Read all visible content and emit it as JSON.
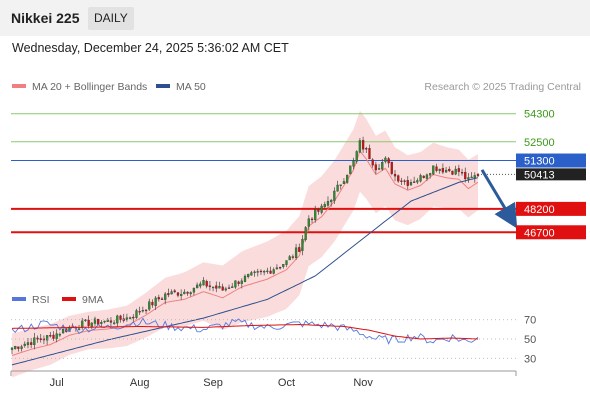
{
  "header": {
    "title": "Nikkei 225",
    "timeframe": "DAILY"
  },
  "date_line": "Wednesday, December 24, 2025 5:36:02 AM CET",
  "colors": {
    "bollinger": "#f08080",
    "ma50": "#2c4f8f",
    "band_fill": "#f9d0d0",
    "bull": "#2e8b2e",
    "bear": "#d01010",
    "resistance": "#8cc870",
    "resistance_text": "#3a9a1a",
    "pivot": "#2b5fc9",
    "support": "#e01010",
    "rsi": "#5577dd",
    "rsi_ma": "#e01010",
    "arrow": "#2c5a9a"
  },
  "chart_data": [
    {
      "type": "candlestick",
      "legend": [
        {
          "label": "MA 20 + Bollinger Bands",
          "color": "#f08080"
        },
        {
          "label": "MA 50",
          "color": "#2c4f8f"
        }
      ],
      "attribution": "Research © 2025 Trading Central",
      "ylim": [
        43000,
        55500
      ],
      "x_ticks": [
        "Jul",
        "Aug",
        "Sep",
        "Oct",
        "Nov"
      ],
      "levels": [
        {
          "value": "54300",
          "kind": "resistance"
        },
        {
          "value": "52500",
          "kind": "resistance"
        },
        {
          "value": "51300",
          "kind": "pivot"
        },
        {
          "value": "48200",
          "kind": "support"
        },
        {
          "value": "46700",
          "kind": "support"
        }
      ],
      "last_price": "50413",
      "ohlc_anchors": [
        {
          "x": 0,
          "y": 39300
        },
        {
          "x": 6,
          "y": 39700
        },
        {
          "x": 12,
          "y": 40000
        },
        {
          "x": 18,
          "y": 40600
        },
        {
          "x": 24,
          "y": 40900
        },
        {
          "x": 30,
          "y": 41000
        },
        {
          "x": 36,
          "y": 41200
        },
        {
          "x": 42,
          "y": 41900
        },
        {
          "x": 48,
          "y": 42700
        },
        {
          "x": 54,
          "y": 42900
        },
        {
          "x": 60,
          "y": 43400
        },
        {
          "x": 66,
          "y": 43000
        },
        {
          "x": 72,
          "y": 43700
        },
        {
          "x": 80,
          "y": 44200
        },
        {
          "x": 86,
          "y": 44800
        },
        {
          "x": 90,
          "y": 45700
        },
        {
          "x": 93,
          "y": 47600
        },
        {
          "x": 97,
          "y": 48200
        },
        {
          "x": 101,
          "y": 49200
        },
        {
          "x": 104,
          "y": 50200
        },
        {
          "x": 107,
          "y": 51200
        },
        {
          "x": 109,
          "y": 52400
        },
        {
          "x": 111,
          "y": 51900
        },
        {
          "x": 114,
          "y": 50900
        },
        {
          "x": 117,
          "y": 51300
        },
        {
          "x": 120,
          "y": 50300
        },
        {
          "x": 124,
          "y": 49900
        },
        {
          "x": 128,
          "y": 50200
        },
        {
          "x": 132,
          "y": 50900
        },
        {
          "x": 136,
          "y": 50700
        },
        {
          "x": 140,
          "y": 50600
        },
        {
          "x": 143,
          "y": 50000
        },
        {
          "x": 146,
          "y": 50413
        }
      ],
      "ma50_anchors": [
        {
          "x": 0,
          "y": 38200
        },
        {
          "x": 30,
          "y": 39800
        },
        {
          "x": 60,
          "y": 41200
        },
        {
          "x": 80,
          "y": 42400
        },
        {
          "x": 95,
          "y": 43900
        },
        {
          "x": 110,
          "y": 46300
        },
        {
          "x": 125,
          "y": 48700
        },
        {
          "x": 140,
          "y": 49900
        },
        {
          "x": 146,
          "y": 50200
        }
      ],
      "ma20_offset": -500,
      "band_half_width": [
        1400,
        1300,
        1200,
        1300,
        1600,
        1900,
        2300,
        2500,
        2600,
        2600,
        2300,
        2000,
        1800
      ],
      "forecast_arrow": {
        "from": 50700,
        "to": 47600
      },
      "n_bars": 147
    },
    {
      "type": "line",
      "legend": [
        {
          "label": "RSI",
          "color": "#5577dd"
        },
        {
          "label": "9MA",
          "color": "#e01010"
        }
      ],
      "ylim": [
        22,
        78
      ],
      "y_ticks": [
        "70",
        "50",
        "30"
      ],
      "rsi_anchors": [
        {
          "x": 0,
          "y": 58
        },
        {
          "x": 10,
          "y": 66
        },
        {
          "x": 20,
          "y": 60
        },
        {
          "x": 30,
          "y": 62
        },
        {
          "x": 40,
          "y": 68
        },
        {
          "x": 50,
          "y": 63
        },
        {
          "x": 60,
          "y": 60
        },
        {
          "x": 70,
          "y": 67
        },
        {
          "x": 80,
          "y": 62
        },
        {
          "x": 90,
          "y": 66
        },
        {
          "x": 100,
          "y": 64
        },
        {
          "x": 108,
          "y": 58
        },
        {
          "x": 114,
          "y": 50
        },
        {
          "x": 120,
          "y": 49
        },
        {
          "x": 126,
          "y": 53
        },
        {
          "x": 132,
          "y": 48
        },
        {
          "x": 138,
          "y": 52
        },
        {
          "x": 143,
          "y": 47
        },
        {
          "x": 146,
          "y": 53
        }
      ],
      "ma_anchors": [
        {
          "x": 0,
          "y": 61
        },
        {
          "x": 20,
          "y": 62
        },
        {
          "x": 40,
          "y": 63
        },
        {
          "x": 60,
          "y": 62
        },
        {
          "x": 75,
          "y": 64
        },
        {
          "x": 90,
          "y": 65
        },
        {
          "x": 104,
          "y": 63
        },
        {
          "x": 112,
          "y": 59
        },
        {
          "x": 120,
          "y": 53
        },
        {
          "x": 128,
          "y": 50
        },
        {
          "x": 138,
          "y": 51
        },
        {
          "x": 146,
          "y": 50
        }
      ]
    }
  ]
}
